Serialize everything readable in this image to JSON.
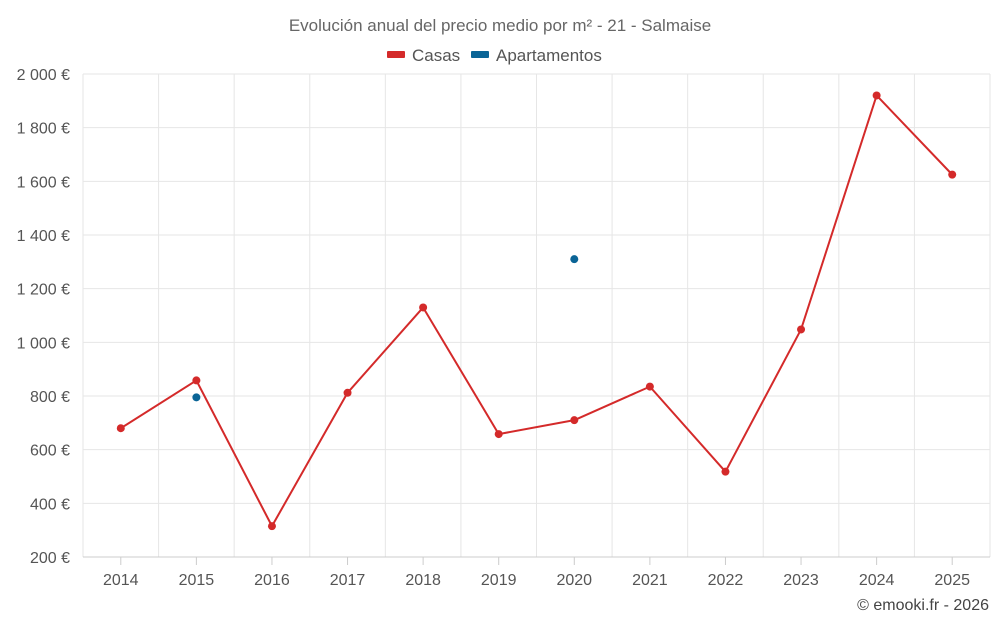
{
  "chart_data": {
    "type": "line",
    "title": "Evolución anual del precio medio por m² - 21 - Salmaise",
    "xlabel": "",
    "ylabel": "",
    "categories": [
      "2014",
      "2015",
      "2016",
      "2017",
      "2018",
      "2019",
      "2020",
      "2021",
      "2022",
      "2023",
      "2024",
      "2025"
    ],
    "ylim": [
      200,
      2000
    ],
    "yticks": [
      200,
      400,
      600,
      800,
      1000,
      1200,
      1400,
      1600,
      1800,
      2000
    ],
    "ytick_labels": [
      "200 €",
      "400 €",
      "600 €",
      "800 €",
      "1 000 €",
      "1 200 €",
      "1 400 €",
      "1 600 €",
      "1 800 €",
      "2 000 €"
    ],
    "grid": true,
    "legend_position": "top-center",
    "series": [
      {
        "name": "Casas",
        "color": "#d42a2a",
        "values": [
          680,
          858,
          315,
          812,
          1130,
          658,
          710,
          835,
          518,
          1048,
          1920,
          1625
        ]
      },
      {
        "name": "Apartamentos",
        "color": "#0a6496",
        "values": [
          null,
          795,
          null,
          null,
          null,
          null,
          1310,
          null,
          null,
          null,
          null,
          null
        ]
      }
    ]
  },
  "credit": "© emooki.fr - 2026"
}
